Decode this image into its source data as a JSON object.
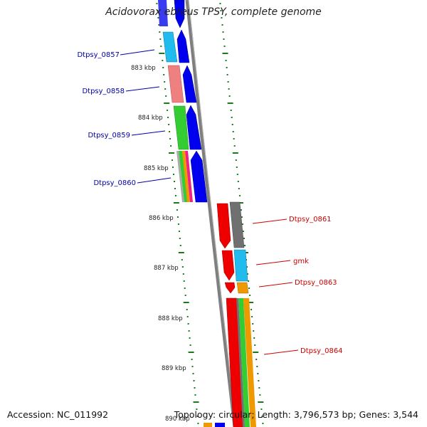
{
  "title": "Acidovorax ebreus TPSY, complete genome",
  "footer": {
    "accession": "Accession: NC_011992",
    "summary": "Topology: circular; Length: 3,796,573 bp; Genes: 3,544"
  },
  "colors": {
    "backbone": "#888888",
    "tick_green": "#1a7a1a",
    "strand_blue": "#0000ee",
    "label_blue": "#0000aa",
    "label_red": "#cc0000"
  },
  "ruler": [
    {
      "label": "883 kbp"
    },
    {
      "label": "884 kbp"
    },
    {
      "label": "885 kbp"
    },
    {
      "label": "886 kbp"
    },
    {
      "label": "887 kbp"
    },
    {
      "label": "888 kbp"
    },
    {
      "label": "889 kbp"
    },
    {
      "label": "890 kbp"
    }
  ],
  "genes_left": [
    {
      "name": "Dtpsy_0857"
    },
    {
      "name": "Dtpsy_0858"
    },
    {
      "name": "Dtpsy_0859"
    },
    {
      "name": "Dtpsy_0860"
    }
  ],
  "genes_right": [
    {
      "name": "Dtpsy_0861"
    },
    {
      "name": "gmk"
    },
    {
      "name": "Dtpsy_0863"
    },
    {
      "name": "Dtpsy_0864"
    }
  ]
}
